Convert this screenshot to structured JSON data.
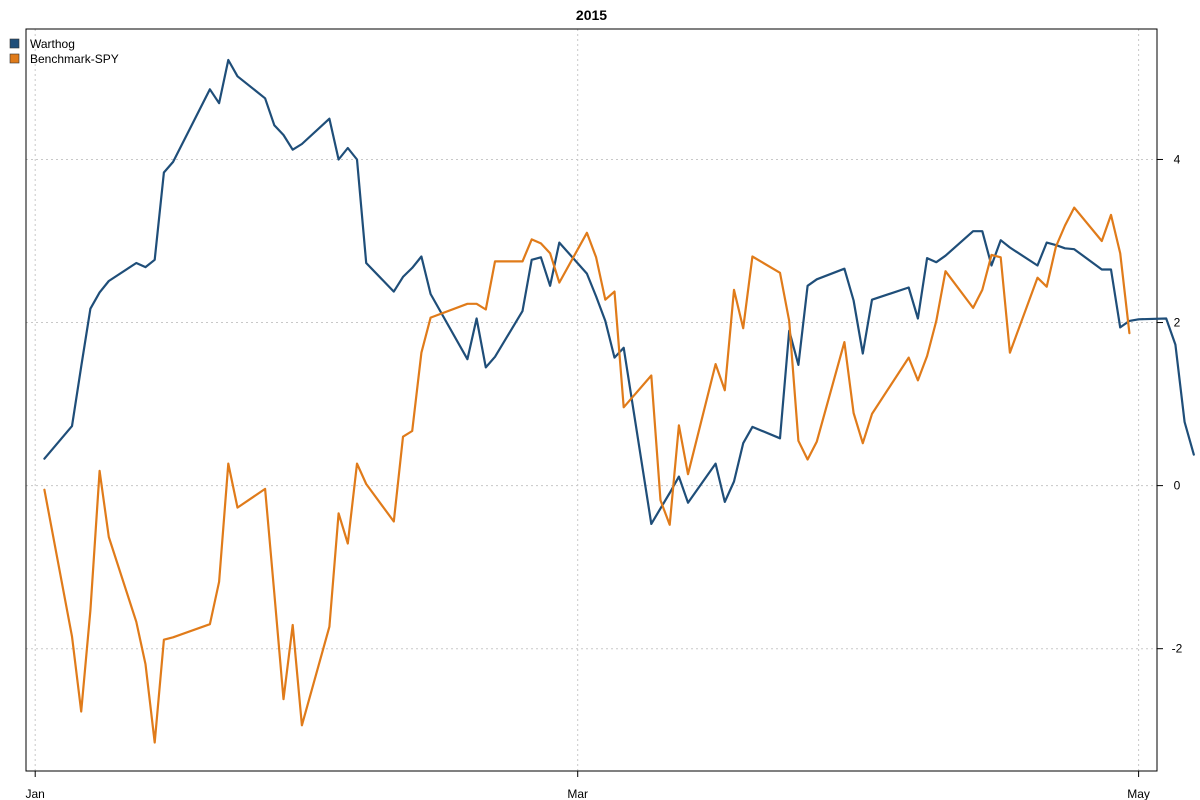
{
  "chart_data": {
    "type": "line",
    "title": "2015",
    "xlabel": "",
    "ylabel": "",
    "x_tick_labels": [
      "Jan",
      "Mar",
      "May"
    ],
    "x_ticks": [
      "2015-01-01",
      "2015-03-01",
      "2015-05-01"
    ],
    "x_range": [
      "2014-12-31",
      "2015-05-03"
    ],
    "y_ticks": [
      -2,
      0,
      2,
      4
    ],
    "ylim": [
      -3.5,
      5.6
    ],
    "y_axis_side": "right",
    "grid": true,
    "legend_position": "top-left",
    "series": [
      {
        "name": "Warthog",
        "color": "#1f4e79",
        "points": [
          [
            "2015-01-02",
            0.33
          ],
          [
            "2015-01-05",
            0.73
          ],
          [
            "2015-01-06",
            1.46
          ],
          [
            "2015-01-07",
            2.17
          ],
          [
            "2015-01-08",
            2.37
          ],
          [
            "2015-01-09",
            2.51
          ],
          [
            "2015-01-12",
            2.73
          ],
          [
            "2015-01-13",
            2.68
          ],
          [
            "2015-01-14",
            2.77
          ],
          [
            "2015-01-15",
            3.84
          ],
          [
            "2015-01-16",
            3.97
          ],
          [
            "2015-01-20",
            4.86
          ],
          [
            "2015-01-21",
            4.69
          ],
          [
            "2015-01-22",
            5.22
          ],
          [
            "2015-01-23",
            5.02
          ],
          [
            "2015-01-26",
            4.75
          ],
          [
            "2015-01-27",
            4.42
          ],
          [
            "2015-01-28",
            4.3
          ],
          [
            "2015-01-29",
            4.12
          ],
          [
            "2015-01-30",
            4.19
          ],
          [
            "2015-02-02",
            4.5
          ],
          [
            "2015-02-03",
            4.0
          ],
          [
            "2015-02-04",
            4.14
          ],
          [
            "2015-02-05",
            4.0
          ],
          [
            "2015-02-06",
            2.73
          ],
          [
            "2015-02-09",
            2.38
          ],
          [
            "2015-02-10",
            2.56
          ],
          [
            "2015-02-11",
            2.67
          ],
          [
            "2015-02-12",
            2.81
          ],
          [
            "2015-02-13",
            2.35
          ],
          [
            "2015-02-17",
            1.55
          ],
          [
            "2015-02-18",
            2.05
          ],
          [
            "2015-02-19",
            1.45
          ],
          [
            "2015-02-20",
            1.58
          ],
          [
            "2015-02-23",
            2.14
          ],
          [
            "2015-02-24",
            2.77
          ],
          [
            "2015-02-25",
            2.8
          ],
          [
            "2015-02-26",
            2.45
          ],
          [
            "2015-02-27",
            2.98
          ],
          [
            "2015-03-02",
            2.6
          ],
          [
            "2015-03-03",
            2.32
          ],
          [
            "2015-03-04",
            2.02
          ],
          [
            "2015-03-05",
            1.57
          ],
          [
            "2015-03-06",
            1.69
          ],
          [
            "2015-03-09",
            -0.47
          ],
          [
            "2015-03-10",
            -0.28
          ],
          [
            "2015-03-11",
            -0.09
          ],
          [
            "2015-03-12",
            0.11
          ],
          [
            "2015-03-13",
            -0.21
          ],
          [
            "2015-03-16",
            0.27
          ],
          [
            "2015-03-17",
            -0.2
          ],
          [
            "2015-03-18",
            0.05
          ],
          [
            "2015-03-19",
            0.52
          ],
          [
            "2015-03-20",
            0.72
          ],
          [
            "2015-03-23",
            0.58
          ],
          [
            "2015-03-24",
            1.9
          ],
          [
            "2015-03-25",
            1.48
          ],
          [
            "2015-03-26",
            2.45
          ],
          [
            "2015-03-27",
            2.53
          ],
          [
            "2015-03-30",
            2.66
          ],
          [
            "2015-03-31",
            2.27
          ],
          [
            "2015-04-01",
            1.62
          ],
          [
            "2015-04-02",
            2.28
          ],
          [
            "2015-04-06",
            2.43
          ],
          [
            "2015-04-07",
            2.05
          ],
          [
            "2015-04-08",
            2.79
          ],
          [
            "2015-04-09",
            2.74
          ],
          [
            "2015-04-10",
            2.82
          ],
          [
            "2015-04-13",
            3.12
          ],
          [
            "2015-04-14",
            3.12
          ],
          [
            "2015-04-15",
            2.7
          ],
          [
            "2015-04-16",
            3.01
          ],
          [
            "2015-04-17",
            2.92
          ],
          [
            "2015-04-20",
            2.7
          ],
          [
            "2015-04-21",
            2.98
          ],
          [
            "2015-04-22",
            2.95
          ],
          [
            "2015-04-23",
            2.91
          ],
          [
            "2015-04-24",
            2.9
          ],
          [
            "2015-04-27",
            2.65
          ],
          [
            "2015-04-28",
            2.65
          ],
          [
            "2015-04-29",
            1.94
          ],
          [
            "2015-04-30",
            2.02
          ],
          [
            "2015-05-01",
            2.04
          ],
          [
            "2015-05-04",
            2.05
          ],
          [
            "2015-05-05",
            1.73
          ],
          [
            "2015-05-06",
            0.78
          ],
          [
            "2015-05-07",
            0.38
          ]
        ]
      },
      {
        "name": "Benchmark-SPY",
        "color": "#e07b1a",
        "points": [
          [
            "2015-01-02",
            -0.05
          ],
          [
            "2015-01-05",
            -1.85
          ],
          [
            "2015-01-06",
            -2.77
          ],
          [
            "2015-01-07",
            -1.53
          ],
          [
            "2015-01-08",
            0.18
          ],
          [
            "2015-01-09",
            -0.63
          ],
          [
            "2015-01-12",
            -1.67
          ],
          [
            "2015-01-13",
            -2.19
          ],
          [
            "2015-01-14",
            -3.15
          ],
          [
            "2015-01-15",
            -1.89
          ],
          [
            "2015-01-16",
            -1.86
          ],
          [
            "2015-01-20",
            -1.7
          ],
          [
            "2015-01-21",
            -1.18
          ],
          [
            "2015-01-22",
            0.27
          ],
          [
            "2015-01-23",
            -0.27
          ],
          [
            "2015-01-26",
            -0.04
          ],
          [
            "2015-01-27",
            -1.32
          ],
          [
            "2015-01-28",
            -2.62
          ],
          [
            "2015-01-29",
            -1.71
          ],
          [
            "2015-01-30",
            -2.94
          ],
          [
            "2015-02-02",
            -1.73
          ],
          [
            "2015-02-03",
            -0.34
          ],
          [
            "2015-02-04",
            -0.71
          ],
          [
            "2015-02-05",
            0.27
          ],
          [
            "2015-02-06",
            0.02
          ],
          [
            "2015-02-09",
            -0.44
          ],
          [
            "2015-02-10",
            0.6
          ],
          [
            "2015-02-11",
            0.67
          ],
          [
            "2015-02-12",
            1.63
          ],
          [
            "2015-02-13",
            2.06
          ],
          [
            "2015-02-17",
            2.23
          ],
          [
            "2015-02-18",
            2.23
          ],
          [
            "2015-02-19",
            2.16
          ],
          [
            "2015-02-20",
            2.75
          ],
          [
            "2015-02-23",
            2.75
          ],
          [
            "2015-02-24",
            3.02
          ],
          [
            "2015-02-25",
            2.97
          ],
          [
            "2015-02-26",
            2.85
          ],
          [
            "2015-02-27",
            2.49
          ],
          [
            "2015-03-02",
            3.1
          ],
          [
            "2015-03-03",
            2.8
          ],
          [
            "2015-03-04",
            2.28
          ],
          [
            "2015-03-05",
            2.38
          ],
          [
            "2015-03-06",
            0.96
          ],
          [
            "2015-03-09",
            1.35
          ],
          [
            "2015-03-10",
            -0.18
          ],
          [
            "2015-03-11",
            -0.48
          ],
          [
            "2015-03-12",
            0.74
          ],
          [
            "2015-03-13",
            0.14
          ],
          [
            "2015-03-16",
            1.49
          ],
          [
            "2015-03-17",
            1.17
          ],
          [
            "2015-03-18",
            2.4
          ],
          [
            "2015-03-19",
            1.93
          ],
          [
            "2015-03-20",
            2.81
          ],
          [
            "2015-03-23",
            2.61
          ],
          [
            "2015-03-24",
            2.02
          ],
          [
            "2015-03-25",
            0.55
          ],
          [
            "2015-03-26",
            0.32
          ],
          [
            "2015-03-27",
            0.54
          ],
          [
            "2015-03-30",
            1.76
          ],
          [
            "2015-03-31",
            0.89
          ],
          [
            "2015-04-01",
            0.52
          ],
          [
            "2015-04-02",
            0.88
          ],
          [
            "2015-04-06",
            1.57
          ],
          [
            "2015-04-07",
            1.29
          ],
          [
            "2015-04-08",
            1.59
          ],
          [
            "2015-04-09",
            2.02
          ],
          [
            "2015-04-10",
            2.63
          ],
          [
            "2015-04-13",
            2.18
          ],
          [
            "2015-04-14",
            2.4
          ],
          [
            "2015-04-15",
            2.83
          ],
          [
            "2015-04-16",
            2.8
          ],
          [
            "2015-04-17",
            1.63
          ],
          [
            "2015-04-20",
            2.55
          ],
          [
            "2015-04-21",
            2.44
          ],
          [
            "2015-04-22",
            2.93
          ],
          [
            "2015-04-23",
            3.19
          ],
          [
            "2015-04-24",
            3.41
          ],
          [
            "2015-04-27",
            3.0
          ],
          [
            "2015-04-28",
            3.32
          ],
          [
            "2015-04-29",
            2.85
          ],
          [
            "2015-04-30",
            1.87
          ]
        ]
      }
    ]
  }
}
